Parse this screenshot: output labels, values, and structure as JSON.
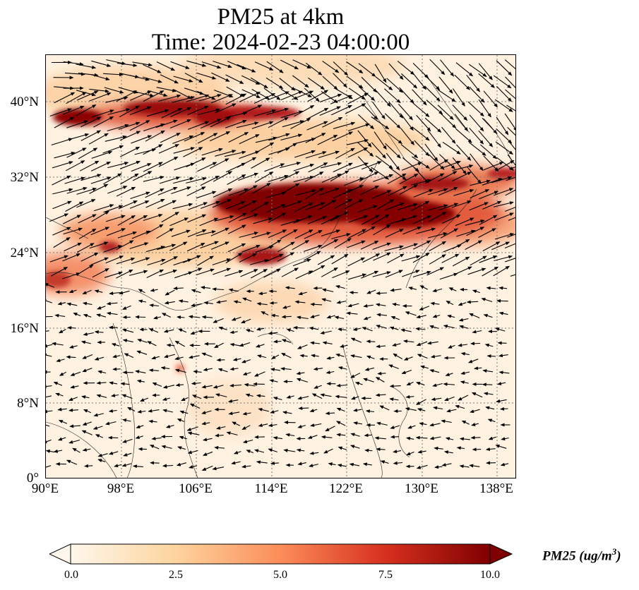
{
  "title_line1": "PM25 at 4km",
  "title_line2": "Time: 2024-02-23 04:00:00",
  "map": {
    "lon_range": [
      90,
      139
    ],
    "lat_range": [
      0,
      44
    ],
    "lat_ticks": [
      "40°N",
      "32°N",
      "24°N",
      "16°N",
      "8°N",
      "0°"
    ],
    "lon_ticks": [
      "90°E",
      "98°E",
      "106°E",
      "114°E",
      "122°E",
      "130°E",
      "138°E"
    ],
    "gridlines": "dotted",
    "colormap": [
      "#fff7ec",
      "#fdd49e",
      "#fc8d59",
      "#d7301f",
      "#7f0000"
    ],
    "vectors": "wind arrows (black)"
  },
  "colorbar": {
    "range": [
      0.0,
      10.0
    ],
    "ticks": [
      "0.0",
      "2.5",
      "5.0",
      "7.5",
      "10.0"
    ],
    "label_main": "PM25 (ug/m",
    "label_sup": "3",
    "label_end": ")",
    "extend": "both"
  }
}
